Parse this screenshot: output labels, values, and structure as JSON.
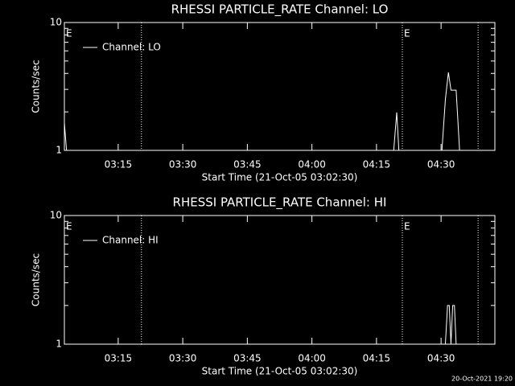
{
  "chart_data": [
    {
      "type": "line",
      "title": "RHESSI PARTICLE_RATE Channel: LO",
      "xlabel": "Start Time (21-Oct-05 03:02:30)",
      "ylabel": "Counts/sec",
      "log_y": true,
      "legend": "upper left",
      "color": "#ffffff",
      "xlim": [
        2.5,
        102.5
      ],
      "ylim": [
        1,
        10
      ],
      "yticks": [
        1,
        10
      ],
      "xticks": [
        {
          "value": 15,
          "label": "03:15"
        },
        {
          "value": 30,
          "label": "03:30"
        },
        {
          "value": 45,
          "label": "03:45"
        },
        {
          "value": 60,
          "label": "04:00"
        },
        {
          "value": 75,
          "label": "04:15"
        },
        {
          "value": 90,
          "label": "04:30"
        }
      ],
      "vlines": [
        20.4,
        81,
        98.6
      ],
      "annotations": [
        {
          "text": "E",
          "x": 2.5
        },
        {
          "text": "E",
          "x": 81
        }
      ],
      "x": [
        2.5,
        3,
        79,
        79.7,
        80.2,
        90.2,
        91,
        91.7,
        92.3,
        93.5,
        94.3
      ],
      "series": [
        {
          "name": "Channel: LO",
          "color": "#ffffff",
          "values": [
            1.64,
            1,
            1,
            1.98,
            1,
            1,
            2.5,
            4.07,
            2.96,
            2.96,
            1
          ]
        }
      ]
    },
    {
      "type": "line",
      "title": "RHESSI PARTICLE_RATE Channel: HI",
      "xlabel": "Start Time (21-Oct-05 03:02:30)",
      "ylabel": "Counts/sec",
      "log_y": true,
      "legend": "upper left",
      "color": "#ffffff",
      "xlim": [
        2.5,
        102.5
      ],
      "ylim": [
        1,
        10
      ],
      "yticks": [
        1,
        10
      ],
      "xticks": [
        {
          "value": 15,
          "label": "03:15"
        },
        {
          "value": 30,
          "label": "03:30"
        },
        {
          "value": 45,
          "label": "03:45"
        },
        {
          "value": 60,
          "label": "04:00"
        },
        {
          "value": 75,
          "label": "04:15"
        },
        {
          "value": 90,
          "label": "04:30"
        }
      ],
      "vlines": [
        20.4,
        81,
        98.6
      ],
      "annotations": [
        {
          "text": "E",
          "x": 2.5
        },
        {
          "text": "E",
          "x": 81
        }
      ],
      "x": [
        2.5,
        91,
        91.5,
        91.9,
        92.3,
        92.7,
        93.1,
        93.5
      ],
      "series": [
        {
          "name": "Channel: HI",
          "color": "#ffffff",
          "values": [
            1,
            1,
            2,
            2,
            1,
            2,
            2,
            1
          ]
        }
      ]
    }
  ],
  "footer": "20-Oct-2021 19:20"
}
